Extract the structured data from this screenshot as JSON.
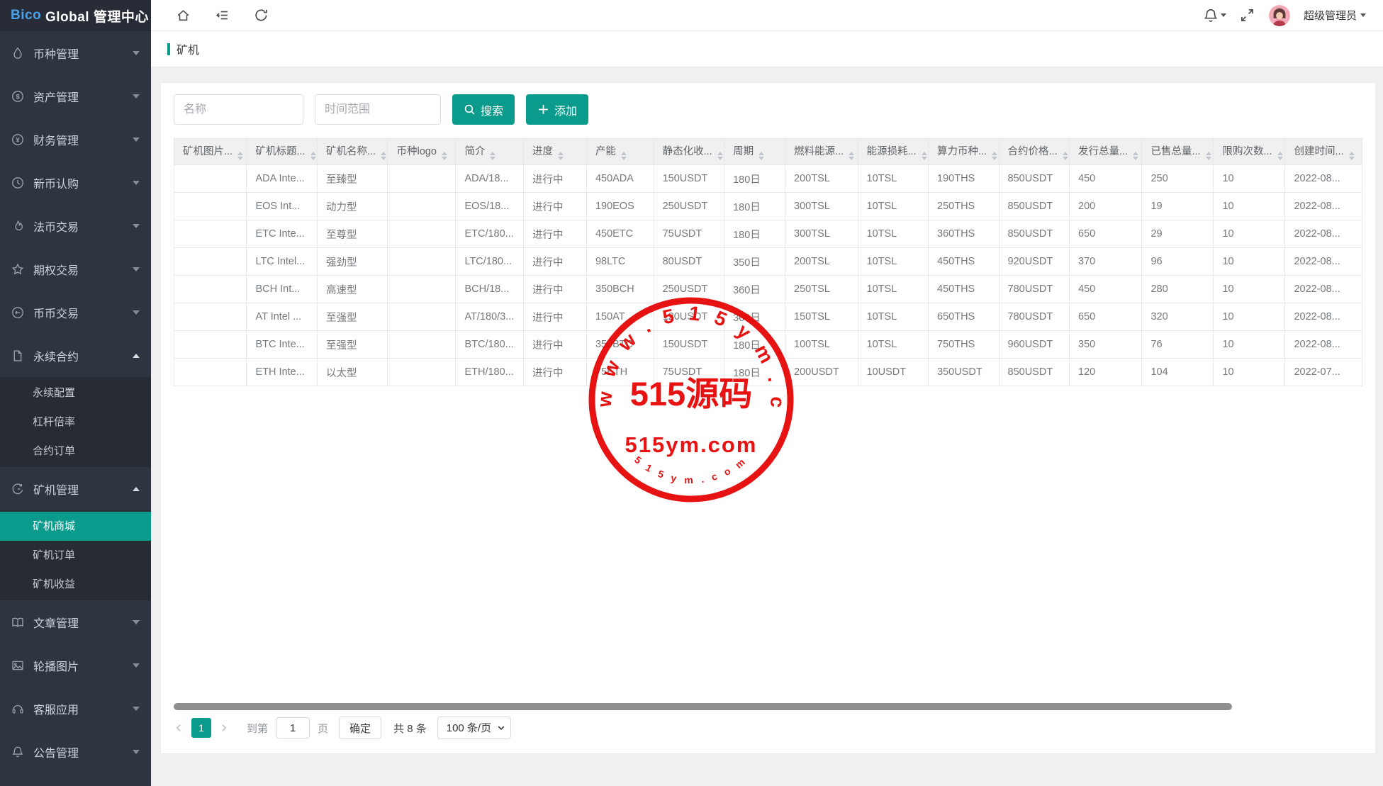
{
  "app": {
    "brand_bico": "Bico",
    "brand_rest": " Global 管理中心"
  },
  "topbar": {
    "admin_label": "超级管理员"
  },
  "sidebar": {
    "items": [
      {
        "label": "币种管理",
        "icon": "drop-icon"
      },
      {
        "label": "资产管理",
        "icon": "dollar-icon"
      },
      {
        "label": "财务管理",
        "icon": "yen-icon"
      },
      {
        "label": "新币认购",
        "icon": "clock-icon"
      },
      {
        "label": "法币交易",
        "icon": "flame-icon"
      },
      {
        "label": "期权交易",
        "icon": "star-icon"
      },
      {
        "label": "币币交易",
        "icon": "exchange-icon"
      },
      {
        "label": "永续合约",
        "icon": "document-icon",
        "expanded": true,
        "children": [
          "永续配置",
          "杠杆倍率",
          "合约订单"
        ]
      },
      {
        "label": "矿机管理",
        "icon": "gauge-icon",
        "expanded": true,
        "children": [
          "矿机商城",
          "矿机订单",
          "矿机收益"
        ],
        "active_child": "矿机商城"
      },
      {
        "label": "文章管理",
        "icon": "book-icon"
      },
      {
        "label": "轮播图片",
        "icon": "image-icon"
      },
      {
        "label": "客服应用",
        "icon": "headset-icon"
      },
      {
        "label": "公告管理",
        "icon": "bell-icon"
      }
    ]
  },
  "page": {
    "title": "矿机"
  },
  "filters": {
    "name_placeholder": "名称",
    "date_placeholder": "时间范围",
    "search_label": "搜索",
    "add_label": "添加"
  },
  "table": {
    "columns": [
      "矿机图片...",
      "矿机标题...",
      "矿机名称...",
      "币种logo",
      "简介",
      "进度",
      "产能",
      "静态化收...",
      "周期",
      "燃料能源...",
      "能源损耗...",
      "算力币种...",
      "合约价格...",
      "发行总量...",
      "已售总量...",
      "限购次数...",
      "创建时间..."
    ],
    "rows": [
      [
        "",
        "ADA Inte...",
        "至臻型",
        "",
        "ADA/18...",
        "进行中",
        "450ADA",
        "150USDT",
        "180日",
        "200TSL",
        "10TSL",
        "190THS",
        "850USDT",
        "450",
        "250",
        "10",
        "2022-08..."
      ],
      [
        "",
        "EOS Int...",
        "动力型",
        "",
        "EOS/18...",
        "进行中",
        "190EOS",
        "250USDT",
        "180日",
        "300TSL",
        "10TSL",
        "250THS",
        "850USDT",
        "200",
        "19",
        "10",
        "2022-08..."
      ],
      [
        "",
        "ETC Inte...",
        "至尊型",
        "",
        "ETC/180...",
        "进行中",
        "450ETC",
        "75USDT",
        "180日",
        "300TSL",
        "10TSL",
        "360THS",
        "850USDT",
        "650",
        "29",
        "10",
        "2022-08..."
      ],
      [
        "",
        "LTC Intel...",
        "强劲型",
        "",
        "LTC/180...",
        "进行中",
        "98LTC",
        "80USDT",
        "350日",
        "200TSL",
        "10TSL",
        "450THS",
        "920USDT",
        "370",
        "96",
        "10",
        "2022-08..."
      ],
      [
        "",
        "BCH Int...",
        "高速型",
        "",
        "BCH/18...",
        "进行中",
        "350BCH",
        "250USDT",
        "360日",
        "250TSL",
        "10TSL",
        "450THS",
        "780USDT",
        "450",
        "280",
        "10",
        "2022-08..."
      ],
      [
        "",
        "AT Intel ...",
        "至强型",
        "",
        "AT/180/3...",
        "进行中",
        "150AT",
        "120USDT",
        "360日",
        "150TSL",
        "10TSL",
        "650THS",
        "780USDT",
        "650",
        "320",
        "10",
        "2022-08..."
      ],
      [
        "",
        "BTC Inte...",
        "至强型",
        "",
        "BTC/180...",
        "进行中",
        "350BTC",
        "150USDT",
        "180日",
        "100TSL",
        "10TSL",
        "750THS",
        "960USDT",
        "350",
        "76",
        "10",
        "2022-08..."
      ],
      [
        "",
        "ETH Inte...",
        "以太型",
        "",
        "ETH/180...",
        "进行中",
        "75ETH",
        "75USDT",
        "180日",
        "200USDT",
        "10USDT",
        "350USDT",
        "850USDT",
        "120",
        "104",
        "10",
        "2022-07..."
      ]
    ]
  },
  "pagination": {
    "current_page": "1",
    "goto_label": "到第",
    "page_input_value": "1",
    "page_unit": "页",
    "confirm_label": "确定",
    "total_label": "共 8 条",
    "page_size": "100 条/页"
  },
  "watermark": {
    "arc_text": "www.515ym.com",
    "title": "515源码",
    "subtitle": "515ym.com",
    "bottom_text": "515ym.com",
    "color": "#e60000"
  },
  "colors": {
    "accent": "#0a9b8c",
    "stamp_red": "#e60000",
    "sidebar_bg": "#2f3540"
  }
}
